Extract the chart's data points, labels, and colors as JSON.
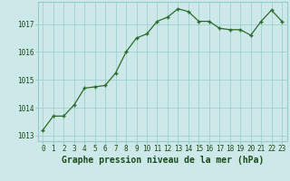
{
  "x": [
    0,
    1,
    2,
    3,
    4,
    5,
    6,
    7,
    8,
    9,
    10,
    11,
    12,
    13,
    14,
    15,
    16,
    17,
    18,
    19,
    20,
    21,
    22,
    23
  ],
  "y": [
    1013.2,
    1013.7,
    1013.7,
    1014.1,
    1014.7,
    1014.75,
    1014.8,
    1015.25,
    1016.0,
    1016.5,
    1016.65,
    1017.1,
    1017.25,
    1017.55,
    1017.45,
    1017.1,
    1017.1,
    1016.85,
    1016.8,
    1016.8,
    1016.6,
    1017.1,
    1017.5,
    1017.1
  ],
  "line_color": "#2d6a2d",
  "marker_color": "#2d6a2d",
  "bg_color": "#cce8e8",
  "grid_color": "#99cccc",
  "xlabel": "Graphe pression niveau de la mer (hPa)",
  "xlabel_fontsize": 7,
  "ylim": [
    1012.8,
    1017.8
  ],
  "yticks": [
    1013,
    1014,
    1015,
    1016,
    1017
  ],
  "xticks": [
    0,
    1,
    2,
    3,
    4,
    5,
    6,
    7,
    8,
    9,
    10,
    11,
    12,
    13,
    14,
    15,
    16,
    17,
    18,
    19,
    20,
    21,
    22,
    23
  ],
  "tick_fontsize": 5.5
}
